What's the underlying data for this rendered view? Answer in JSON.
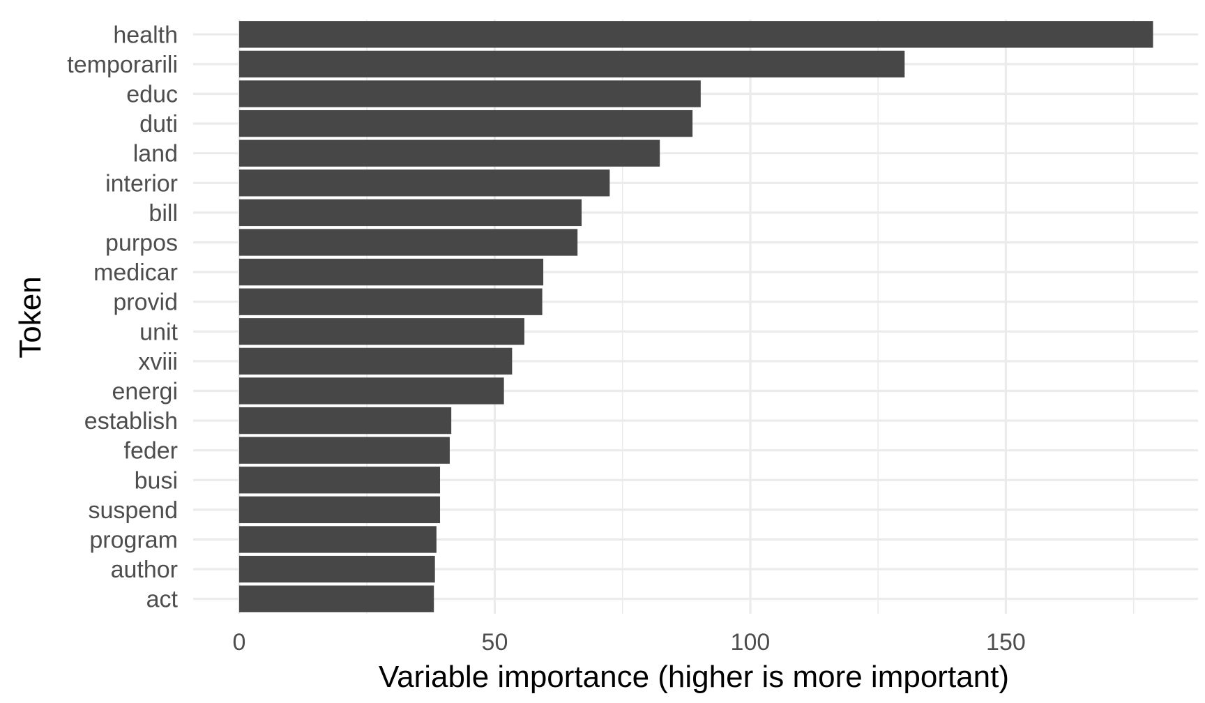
{
  "chart_data": {
    "type": "bar",
    "orientation": "horizontal",
    "categories": [
      "health",
      "temporarili",
      "educ",
      "duti",
      "land",
      "interior",
      "bill",
      "purpos",
      "medicar",
      "provid",
      "unit",
      "xviii",
      "energi",
      "establish",
      "feder",
      "busi",
      "suspend",
      "program",
      "author",
      "act"
    ],
    "values": [
      178.8,
      130.2,
      90.3,
      88.7,
      82.3,
      72.5,
      67.0,
      66.2,
      59.5,
      59.3,
      55.8,
      53.4,
      51.8,
      41.5,
      41.2,
      39.3,
      39.3,
      38.6,
      38.3,
      38.1
    ],
    "title": "",
    "xlabel": "Variable importance (higher is more important)",
    "ylabel": "Token",
    "xlim": [
      -9,
      187.6
    ],
    "xticks": [
      0,
      50,
      100,
      150
    ],
    "xtick_labels": [
      "0",
      "50",
      "100",
      "150"
    ],
    "grid": true,
    "bar_color": "#474747",
    "grid_color": "#ebebeb"
  }
}
